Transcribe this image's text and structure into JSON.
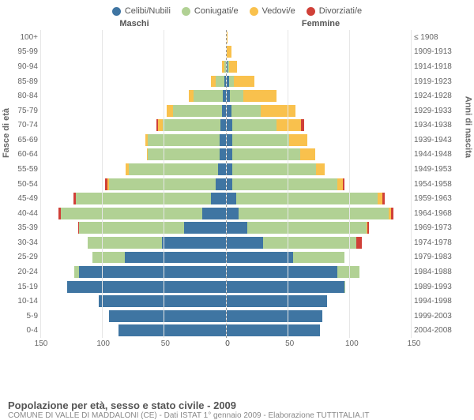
{
  "legend": {
    "items": [
      {
        "label": "Celibi/Nubili",
        "color": "#3f75a2"
      },
      {
        "label": "Coniugati/e",
        "color": "#b1d194"
      },
      {
        "label": "Vedovi/e",
        "color": "#f9c14d"
      },
      {
        "label": "Divorziati/e",
        "color": "#d04038"
      }
    ]
  },
  "headers": {
    "left": "Maschi",
    "right": "Femmine"
  },
  "y_left_title": "Fasce di età",
  "y_right_title": "Anni di nascita",
  "footer": {
    "title": "Popolazione per età, sesso e stato civile - 2009",
    "sub": "COMUNE DI VALLE DI MADDALONI (CE) - Dati ISTAT 1° gennaio 2009 - Elaborazione TUTTITALIA.IT"
  },
  "pyramid": {
    "x_max": 150,
    "x_ticks_left": [
      150,
      100,
      50,
      0
    ],
    "x_ticks_right": [
      0,
      50,
      100,
      150
    ],
    "colors": {
      "single": "#3f75a2",
      "married": "#b1d194",
      "widowed": "#f9c14d",
      "divorced": "#d04038",
      "grid": "#e6e6e6",
      "background": "#ffffff"
    },
    "label_fontsize": 10,
    "rows": [
      {
        "age": "100+",
        "birth": "≤ 1908",
        "male": {
          "single": 0,
          "married": 0,
          "widowed": 0,
          "divorced": 0
        },
        "female": {
          "single": 0,
          "married": 0,
          "widowed": 1,
          "divorced": 0
        }
      },
      {
        "age": "95-99",
        "birth": "1909-1913",
        "male": {
          "single": 0,
          "married": 0,
          "widowed": 0,
          "divorced": 0
        },
        "female": {
          "single": 0,
          "married": 0,
          "widowed": 4,
          "divorced": 0
        }
      },
      {
        "age": "90-94",
        "birth": "1914-1918",
        "male": {
          "single": 0,
          "married": 1,
          "widowed": 2,
          "divorced": 0
        },
        "female": {
          "single": 1,
          "married": 1,
          "widowed": 7,
          "divorced": 0
        }
      },
      {
        "age": "85-89",
        "birth": "1919-1923",
        "male": {
          "single": 1,
          "married": 7,
          "widowed": 4,
          "divorced": 0
        },
        "female": {
          "single": 2,
          "married": 4,
          "widowed": 17,
          "divorced": 0
        }
      },
      {
        "age": "80-84",
        "birth": "1924-1928",
        "male": {
          "single": 2,
          "married": 24,
          "widowed": 4,
          "divorced": 0
        },
        "female": {
          "single": 3,
          "married": 11,
          "widowed": 27,
          "divorced": 0
        }
      },
      {
        "age": "75-79",
        "birth": "1929-1933",
        "male": {
          "single": 3,
          "married": 40,
          "widowed": 5,
          "divorced": 0
        },
        "female": {
          "single": 4,
          "married": 24,
          "widowed": 28,
          "divorced": 0
        }
      },
      {
        "age": "70-74",
        "birth": "1934-1938",
        "male": {
          "single": 4,
          "married": 47,
          "widowed": 4,
          "divorced": 1
        },
        "female": {
          "single": 5,
          "married": 36,
          "widowed": 20,
          "divorced": 2
        }
      },
      {
        "age": "65-69",
        "birth": "1939-1943",
        "male": {
          "single": 5,
          "married": 58,
          "widowed": 2,
          "divorced": 0
        },
        "female": {
          "single": 5,
          "married": 46,
          "widowed": 15,
          "divorced": 0
        }
      },
      {
        "age": "60-64",
        "birth": "1944-1948",
        "male": {
          "single": 5,
          "married": 58,
          "widowed": 1,
          "divorced": 0
        },
        "female": {
          "single": 5,
          "married": 55,
          "widowed": 12,
          "divorced": 0
        }
      },
      {
        "age": "55-59",
        "birth": "1949-1953",
        "male": {
          "single": 6,
          "married": 73,
          "widowed": 2,
          "divorced": 0
        },
        "female": {
          "single": 5,
          "married": 68,
          "widowed": 7,
          "divorced": 0
        }
      },
      {
        "age": "50-54",
        "birth": "1954-1958",
        "male": {
          "single": 8,
          "married": 87,
          "widowed": 1,
          "divorced": 2
        },
        "female": {
          "single": 5,
          "married": 85,
          "widowed": 5,
          "divorced": 1
        }
      },
      {
        "age": "45-49",
        "birth": "1959-1963",
        "male": {
          "single": 12,
          "married": 110,
          "widowed": 0,
          "divorced": 2
        },
        "female": {
          "single": 8,
          "married": 115,
          "widowed": 4,
          "divorced": 2
        }
      },
      {
        "age": "40-44",
        "birth": "1964-1968",
        "male": {
          "single": 19,
          "married": 115,
          "widowed": 0,
          "divorced": 2
        },
        "female": {
          "single": 10,
          "married": 122,
          "widowed": 2,
          "divorced": 2
        }
      },
      {
        "age": "35-39",
        "birth": "1969-1973",
        "male": {
          "single": 34,
          "married": 85,
          "widowed": 0,
          "divorced": 1
        },
        "female": {
          "single": 17,
          "married": 97,
          "widowed": 1,
          "divorced": 1
        }
      },
      {
        "age": "30-34",
        "birth": "1974-1978",
        "male": {
          "single": 52,
          "married": 60,
          "widowed": 0,
          "divorced": 0
        },
        "female": {
          "single": 30,
          "married": 76,
          "widowed": 0,
          "divorced": 4
        }
      },
      {
        "age": "25-29",
        "birth": "1979-1983",
        "male": {
          "single": 82,
          "married": 26,
          "widowed": 0,
          "divorced": 0
        },
        "female": {
          "single": 54,
          "married": 42,
          "widowed": 0,
          "divorced": 0
        }
      },
      {
        "age": "20-24",
        "birth": "1984-1988",
        "male": {
          "single": 119,
          "married": 4,
          "widowed": 0,
          "divorced": 0
        },
        "female": {
          "single": 90,
          "married": 18,
          "widowed": 0,
          "divorced": 0
        }
      },
      {
        "age": "15-19",
        "birth": "1989-1993",
        "male": {
          "single": 129,
          "married": 0,
          "widowed": 0,
          "divorced": 0
        },
        "female": {
          "single": 96,
          "married": 1,
          "widowed": 0,
          "divorced": 0
        }
      },
      {
        "age": "10-14",
        "birth": "1994-1998",
        "male": {
          "single": 103,
          "married": 0,
          "widowed": 0,
          "divorced": 0
        },
        "female": {
          "single": 82,
          "married": 0,
          "widowed": 0,
          "divorced": 0
        }
      },
      {
        "age": "5-9",
        "birth": "1999-2003",
        "male": {
          "single": 95,
          "married": 0,
          "widowed": 0,
          "divorced": 0
        },
        "female": {
          "single": 78,
          "married": 0,
          "widowed": 0,
          "divorced": 0
        }
      },
      {
        "age": "0-4",
        "birth": "2004-2008",
        "male": {
          "single": 87,
          "married": 0,
          "widowed": 0,
          "divorced": 0
        },
        "female": {
          "single": 76,
          "married": 0,
          "widowed": 0,
          "divorced": 0
        }
      }
    ]
  }
}
